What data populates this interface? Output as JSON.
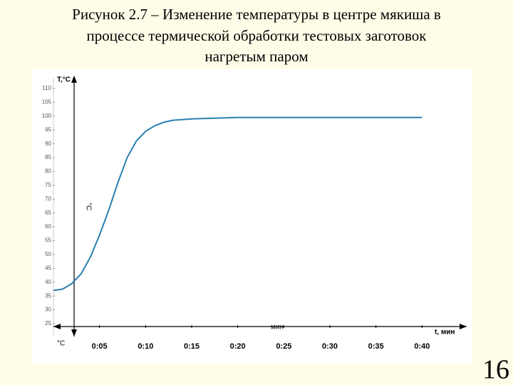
{
  "chart_data": {
    "type": "line",
    "title": [
      "Рисунок 2.7 – Изменение температуры в центре мякиша в",
      "процессе термической обработки тестовых заготовок",
      "нагретым паром"
    ],
    "y_label": "T,°C",
    "x_label": "t, мин",
    "annotations": [
      "°C",
      "°C",
      "мин"
    ],
    "x": [
      0,
      1,
      2,
      3,
      4,
      5,
      6,
      7,
      8,
      9,
      10,
      11,
      12,
      13,
      15,
      20,
      25,
      30,
      35,
      40
    ],
    "series": [
      {
        "name": "T",
        "color": "#2a7fb0",
        "values": [
          37,
          37.5,
          39.5,
          43,
          49,
          57,
          66,
          76,
          85,
          91,
          94.5,
          96.5,
          97.8,
          98.5,
          99,
          99.5,
          99.5,
          99.5,
          99.5,
          99.5
        ]
      }
    ],
    "xlim": [
      0,
      45
    ],
    "xticks": [
      {
        "value": 5,
        "label": "0:05"
      },
      {
        "value": 10,
        "label": "0:10"
      },
      {
        "value": 15,
        "label": "0:15"
      },
      {
        "value": 20,
        "label": "0:20"
      },
      {
        "value": 25,
        "label": "0:25"
      },
      {
        "value": 30,
        "label": "0:30"
      },
      {
        "value": 35,
        "label": "0:35"
      },
      {
        "value": 40,
        "label": "0:40"
      }
    ],
    "ylim": [
      25,
      110
    ],
    "yticks": [
      25,
      30,
      35,
      40,
      45,
      50,
      55,
      60,
      65,
      70,
      75,
      80,
      85,
      90,
      95,
      100,
      105,
      110
    ],
    "grid": false
  },
  "slide": {
    "page_number": "16"
  }
}
